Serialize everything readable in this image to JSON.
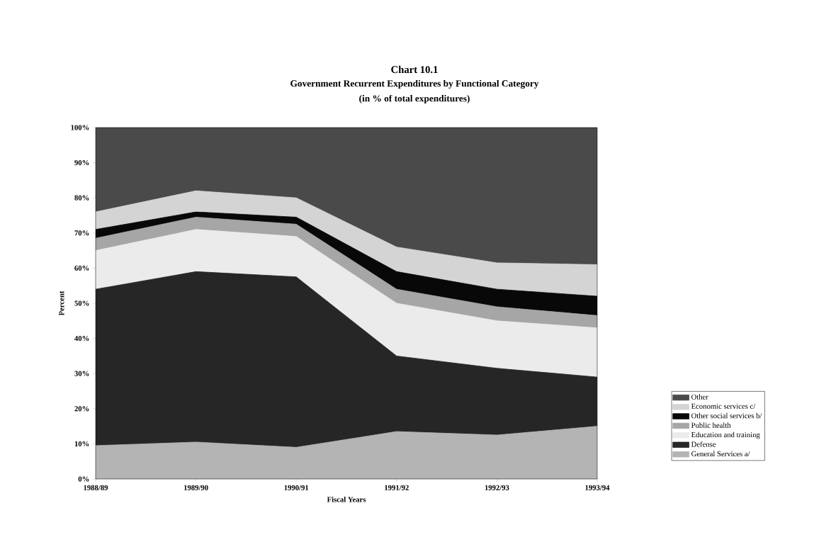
{
  "chart_data": {
    "type": "area",
    "stacked": true,
    "title": "Chart 10.1",
    "subtitle": "Government Recurrent Expenditures by Functional Category",
    "annotations": [
      "(in % of total expenditures)"
    ],
    "xlabel": "Fiscal Years",
    "ylabel": "Percent",
    "categories": [
      "1988/89",
      "1989/90",
      "1990/91",
      "1991/92",
      "1992/93",
      "1993/94"
    ],
    "series": [
      {
        "name": "General Services a/",
        "color": "#b4b4b4",
        "values": [
          9.5,
          10.5,
          9,
          13.5,
          12.5,
          15
        ]
      },
      {
        "name": "Defense",
        "color": "#262626",
        "values": [
          44.5,
          48.5,
          48.5,
          21.5,
          19,
          14
        ]
      },
      {
        "name": "Education and training",
        "color": "#ebebeb",
        "values": [
          11,
          12,
          11.5,
          15,
          13.5,
          14
        ]
      },
      {
        "name": "Public health",
        "color": "#a6a6a6",
        "values": [
          3.5,
          3.5,
          3.5,
          4,
          4,
          3.5
        ]
      },
      {
        "name": "Other social services b/",
        "color": "#080808",
        "values": [
          2.5,
          1.5,
          2,
          5,
          5,
          5.5
        ]
      },
      {
        "name": "Economic services c/",
        "color": "#d4d4d4",
        "values": [
          5,
          6,
          5.5,
          7,
          7.5,
          9
        ]
      },
      {
        "name": "Other",
        "color": "#4a4a4a",
        "values": [
          24,
          18,
          20,
          34,
          38.5,
          39
        ]
      }
    ],
    "ylim": [
      0,
      100
    ],
    "yticks": [
      {
        "value": 0,
        "label": "0%"
      },
      {
        "value": 10,
        "label": "10%"
      },
      {
        "value": 20,
        "label": "20%"
      },
      {
        "value": 30,
        "label": "30%"
      },
      {
        "value": 40,
        "label": "40%"
      },
      {
        "value": 50,
        "label": "50%"
      },
      {
        "value": 60,
        "label": "60%"
      },
      {
        "value": 70,
        "label": "70%"
      },
      {
        "value": 80,
        "label": "80%"
      },
      {
        "value": 90,
        "label": "90%"
      },
      {
        "value": 100,
        "label": "100%"
      }
    ],
    "legend": "right",
    "grid": false,
    "marker": "none"
  }
}
